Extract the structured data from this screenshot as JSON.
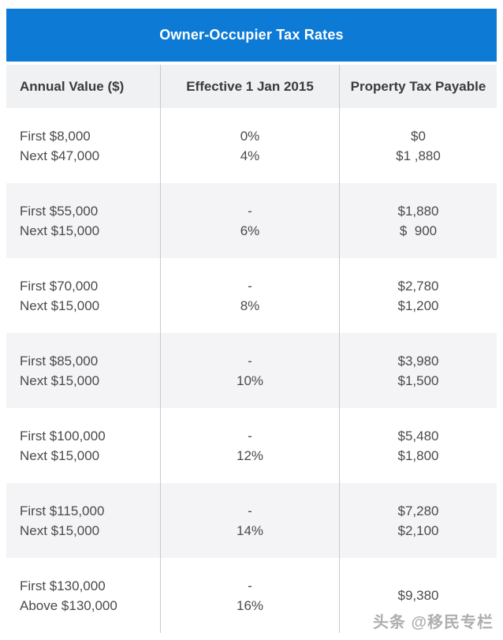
{
  "banner": {
    "title": "Owner-Occupier Tax Rates",
    "background_color": "#0d7bd6",
    "text_color": "#ffffff"
  },
  "table": {
    "columns": [
      "Annual Value ($)",
      "Effective 1 Jan 2015",
      "Property Tax Payable"
    ],
    "header_background": "#f0f1f3",
    "zebra_colors": {
      "odd": "#ffffff",
      "even": "#f4f4f6"
    },
    "divider_color": "#c9c9cd",
    "text_color": "#4a4a4a",
    "rows": [
      {
        "annual_value": [
          "First $8,000",
          "Next $47,000"
        ],
        "rate": [
          "0%",
          "4%"
        ],
        "tax": [
          "$0",
          "$1 ,880"
        ]
      },
      {
        "annual_value": [
          "First $55,000",
          "Next $15,000"
        ],
        "rate": [
          "-",
          "6%"
        ],
        "tax": [
          "$1,880",
          "$  900"
        ]
      },
      {
        "annual_value": [
          "First $70,000",
          "Next $15,000"
        ],
        "rate": [
          "-",
          "8%"
        ],
        "tax": [
          "$2,780",
          "$1,200"
        ]
      },
      {
        "annual_value": [
          "First $85,000",
          "Next $15,000"
        ],
        "rate": [
          "-",
          "10%"
        ],
        "tax": [
          "$3,980",
          "$1,500"
        ]
      },
      {
        "annual_value": [
          "First $100,000",
          "Next $15,000"
        ],
        "rate": [
          "-",
          "12%"
        ],
        "tax": [
          "$5,480",
          "$1,800"
        ]
      },
      {
        "annual_value": [
          "First $115,000",
          "Next $15,000"
        ],
        "rate": [
          "-",
          "14%"
        ],
        "tax": [
          "$7,280",
          "$2,100"
        ]
      },
      {
        "annual_value": [
          "First $130,000",
          "Above $130,000"
        ],
        "rate": [
          "-",
          "16%"
        ],
        "tax": [
          "$9,380",
          ""
        ]
      }
    ]
  },
  "watermark": {
    "text": "头条 @移民专栏",
    "color": "#a6a6a6"
  }
}
